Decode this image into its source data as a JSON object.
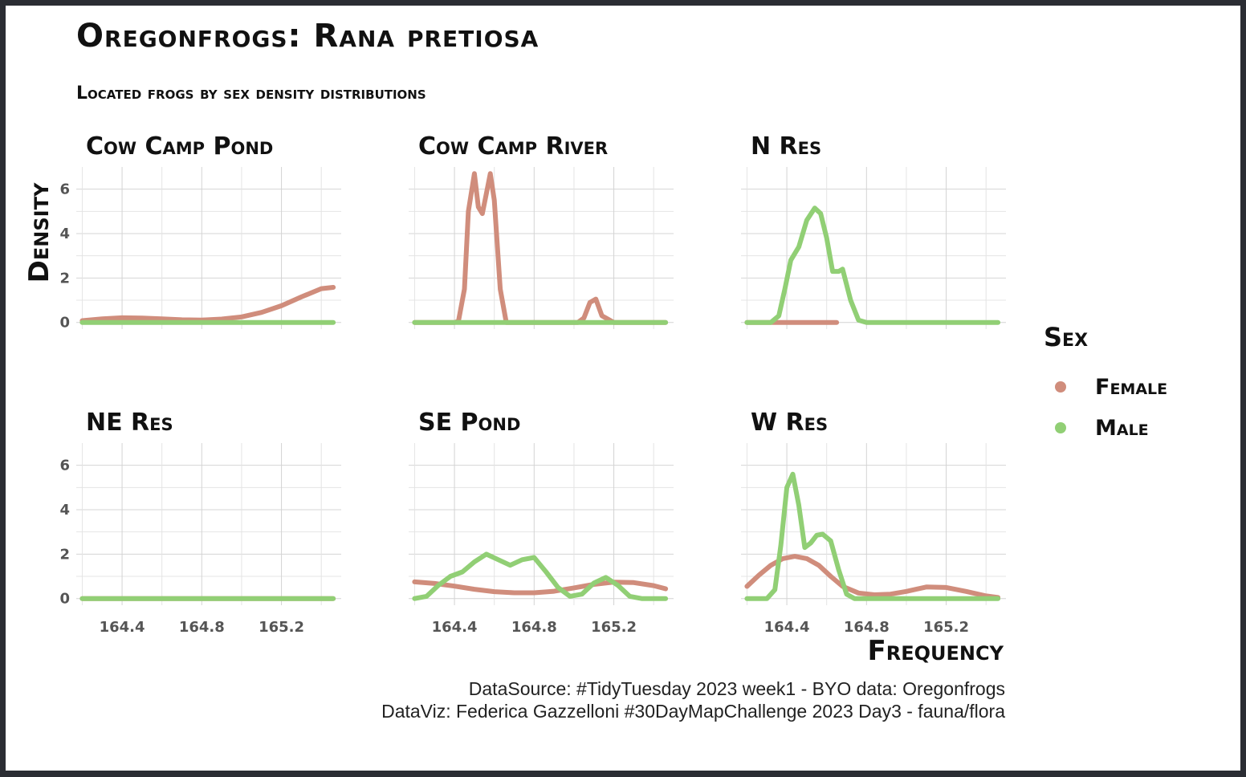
{
  "title": "Oregonfrogs: Rana pretiosa",
  "subtitle": "Located frogs by sex density distributions",
  "caption": {
    "line1": "DataSource: #TidyTuesday 2023 week1 - BYO data: Oregonfrogs",
    "line2": "DataViz: Federica Gazzelloni #30DayMapChallenge 2023 Day3 - fauna/flora"
  },
  "legend": {
    "title": "Sex",
    "items": [
      {
        "label": "Female",
        "color": "#d08d7c"
      },
      {
        "label": "Male",
        "color": "#91cf75"
      }
    ]
  },
  "chart_data": {
    "type": "line",
    "chart_subtype": "faceted density",
    "xlabel": "Frequency",
    "ylabel": "Density",
    "xlim": [
      164.17,
      165.5
    ],
    "ylim": [
      -0.3,
      7.0
    ],
    "xticks": [
      164.4,
      164.8,
      165.2
    ],
    "xtick_labels": [
      "164.4",
      "164.8",
      "165.2"
    ],
    "yticks": [
      0,
      2,
      4,
      6
    ],
    "ytick_labels": [
      "0",
      "2",
      "4",
      "6"
    ],
    "grid": true,
    "legend_position": "right",
    "series_names": [
      "Female",
      "Male"
    ],
    "colors": {
      "Female": "#d08d7c",
      "Male": "#91cf75"
    },
    "panels": [
      {
        "name": "Cow Camp Pond",
        "x_range": [
          164.2,
          165.46
        ],
        "series": [
          {
            "name": "Female",
            "x": [
              164.2,
              164.3,
              164.4,
              164.5,
              164.6,
              164.7,
              164.8,
              164.9,
              165.0,
              165.1,
              165.2,
              165.3,
              165.4,
              165.46
            ],
            "y": [
              0.08,
              0.16,
              0.21,
              0.2,
              0.16,
              0.12,
              0.11,
              0.15,
              0.25,
              0.45,
              0.75,
              1.15,
              1.52,
              1.58
            ]
          },
          {
            "name": "Male",
            "x": [
              164.2,
              164.5,
              164.8,
              165.1,
              165.46
            ],
            "y": [
              0,
              0,
              0,
              0,
              0
            ]
          }
        ]
      },
      {
        "name": "Cow Camp River",
        "x_range": [
          164.2,
          165.46
        ],
        "series": [
          {
            "name": "Female",
            "x": [
              164.2,
              164.4,
              164.42,
              164.45,
              164.47,
              164.5,
              164.52,
              164.54,
              164.56,
              164.58,
              164.6,
              164.63,
              164.66,
              164.7,
              164.9,
              165.02,
              165.05,
              165.08,
              165.11,
              165.14,
              165.2,
              165.46
            ],
            "y": [
              0,
              0,
              0.05,
              1.5,
              5.0,
              6.7,
              5.2,
              4.9,
              5.8,
              6.7,
              5.5,
              1.5,
              0,
              0,
              0,
              0,
              0.2,
              0.9,
              1.05,
              0.3,
              0,
              0
            ]
          },
          {
            "name": "Male",
            "x": [
              164.2,
              164.8,
              165.46
            ],
            "y": [
              0,
              0,
              0
            ]
          }
        ]
      },
      {
        "name": "N Res",
        "x_range": [
          164.2,
          165.46
        ],
        "series": [
          {
            "name": "Female",
            "x": [
              164.2,
              164.3,
              164.4,
              164.5,
              164.65
            ],
            "y": [
              0,
              0,
              0,
              0,
              0
            ]
          },
          {
            "name": "Male",
            "x": [
              164.2,
              164.32,
              164.36,
              164.39,
              164.42,
              164.46,
              164.5,
              164.54,
              164.57,
              164.6,
              164.63,
              164.66,
              164.68,
              164.72,
              164.76,
              164.8,
              165.0,
              165.46
            ],
            "y": [
              0,
              0,
              0.3,
              1.5,
              2.8,
              3.4,
              4.6,
              5.15,
              4.9,
              3.8,
              2.3,
              2.3,
              2.4,
              1.0,
              0.1,
              0,
              0,
              0
            ]
          }
        ]
      },
      {
        "name": "NE Res",
        "x_range": [
          164.2,
          165.46
        ],
        "series": [
          {
            "name": "Female",
            "x": [
              164.2,
              164.8,
              165.46
            ],
            "y": [
              0,
              0,
              0
            ]
          },
          {
            "name": "Male",
            "x": [
              164.2,
              164.8,
              165.46
            ],
            "y": [
              0,
              0,
              0
            ]
          }
        ]
      },
      {
        "name": "SE Pond",
        "x_range": [
          164.2,
          165.46
        ],
        "series": [
          {
            "name": "Female",
            "x": [
              164.2,
              164.3,
              164.4,
              164.5,
              164.6,
              164.7,
              164.8,
              164.9,
              165.0,
              165.1,
              165.2,
              165.3,
              165.4,
              165.46
            ],
            "y": [
              0.75,
              0.68,
              0.56,
              0.42,
              0.31,
              0.26,
              0.26,
              0.33,
              0.48,
              0.64,
              0.74,
              0.72,
              0.58,
              0.44
            ]
          },
          {
            "name": "Male",
            "x": [
              164.2,
              164.26,
              164.32,
              164.38,
              164.44,
              164.5,
              164.56,
              164.62,
              164.68,
              164.74,
              164.8,
              164.86,
              164.92,
              164.98,
              165.04,
              165.1,
              165.16,
              165.22,
              165.28,
              165.34,
              165.46
            ],
            "y": [
              0,
              0.1,
              0.6,
              1.0,
              1.2,
              1.65,
              2.0,
              1.75,
              1.5,
              1.75,
              1.85,
              1.2,
              0.5,
              0.1,
              0.2,
              0.7,
              0.95,
              0.6,
              0.1,
              0,
              0
            ]
          }
        ]
      },
      {
        "name": "W Res",
        "x_range": [
          164.2,
          165.46
        ],
        "series": [
          {
            "name": "Female",
            "x": [
              164.2,
              164.26,
              164.32,
              164.38,
              164.44,
              164.5,
              164.56,
              164.62,
              164.68,
              164.76,
              164.84,
              164.92,
              165.0,
              165.1,
              165.2,
              165.3,
              165.4,
              165.46
            ],
            "y": [
              0.55,
              1.05,
              1.5,
              1.8,
              1.9,
              1.8,
              1.5,
              1.0,
              0.55,
              0.25,
              0.17,
              0.2,
              0.32,
              0.52,
              0.5,
              0.32,
              0.12,
              0.05
            ]
          },
          {
            "name": "Male",
            "x": [
              164.2,
              164.3,
              164.34,
              164.37,
              164.4,
              164.43,
              164.46,
              164.49,
              164.52,
              164.55,
              164.58,
              164.62,
              164.66,
              164.7,
              164.74,
              164.8,
              165.0,
              165.46
            ],
            "y": [
              0,
              0,
              0.4,
              2.4,
              5.0,
              5.6,
              4.2,
              2.3,
              2.5,
              2.85,
              2.9,
              2.6,
              1.3,
              0.2,
              0,
              0,
              0,
              0
            ]
          }
        ]
      }
    ]
  }
}
